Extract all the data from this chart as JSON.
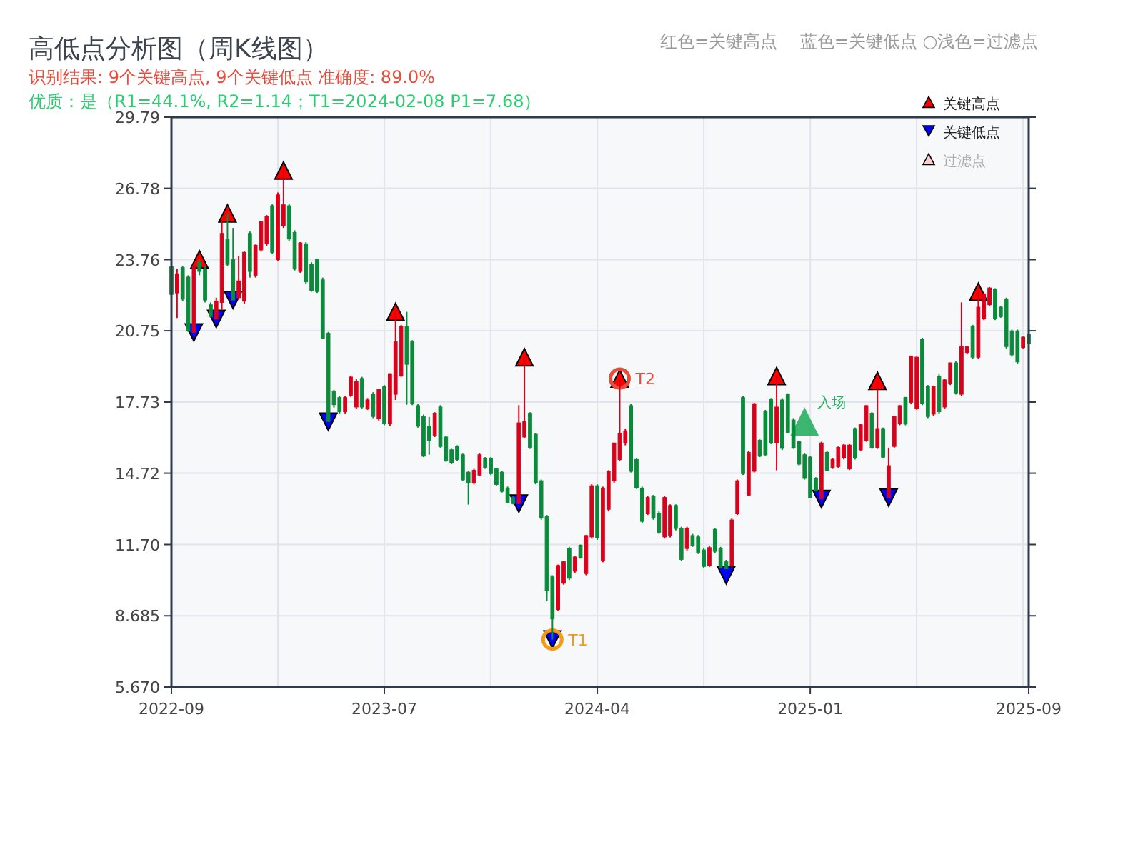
{
  "chart_data": {
    "type": "candlestick",
    "title": "高低点分析图（周K线图）",
    "subtitle": "识别结果: 9个关键高点, 9个关键低点  准确度: 89.0%",
    "annotations": [
      "红色=关键高点　 蓝色=关键低点  ○浅色=过滤点",
      "优质：是（R1=44.1%, R2=1.14；T1=2024-02-08 P1=7.68）"
    ],
    "categories": [
      "2022-09",
      null,
      null,
      null,
      null,
      null,
      null,
      null,
      null,
      null,
      null,
      null,
      null,
      null,
      null,
      null,
      null,
      null,
      null,
      null,
      null,
      null,
      null,
      null,
      null,
      null,
      null,
      null,
      null,
      null,
      null,
      null,
      null,
      null,
      null,
      null,
      null,
      null,
      "2023-07",
      null,
      null,
      null,
      null,
      null,
      null,
      null,
      null,
      null,
      null,
      null,
      null,
      null,
      null,
      null,
      null,
      null,
      null,
      null,
      null,
      null,
      null,
      null,
      null,
      null,
      null,
      null,
      null,
      null,
      null,
      null,
      null,
      null,
      null,
      null,
      null,
      null,
      "2024-04",
      null,
      null,
      null,
      null,
      null,
      null,
      null,
      null,
      null,
      null,
      null,
      null,
      null,
      null,
      null,
      null,
      null,
      null,
      null,
      null,
      null,
      null,
      null,
      null,
      null,
      null,
      null,
      null,
      null,
      null,
      null,
      null,
      null,
      null,
      null,
      null,
      null,
      "2025-01",
      null,
      null,
      null,
      null,
      null,
      null,
      null,
      null,
      null,
      null,
      null,
      null,
      null,
      null,
      null,
      null,
      null,
      null,
      null,
      null,
      null,
      null,
      null,
      null,
      null,
      null,
      null,
      null,
      null,
      null,
      null,
      null,
      null,
      null,
      null,
      null,
      null,
      null,
      "2025-09"
    ],
    "ohlc": [
      [
        23.46,
        23.5,
        22.2,
        22.29
      ],
      [
        22.35,
        23.36,
        21.29,
        23.16
      ],
      [
        23.42,
        23.5,
        22.0,
        22.09
      ],
      [
        23.02,
        23.1,
        20.7,
        20.74
      ],
      [
        20.68,
        23.6,
        20.68,
        23.5
      ],
      [
        23.66,
        23.77,
        23.1,
        23.26
      ],
      [
        23.36,
        23.5,
        21.95,
        22.05
      ],
      [
        21.85,
        21.95,
        21.3,
        21.35
      ],
      [
        21.25,
        22.15,
        21.25,
        22.0
      ],
      [
        21.95,
        25.44,
        21.65,
        24.87
      ],
      [
        24.63,
        25.72,
        23.5,
        23.56
      ],
      [
        23.76,
        25.1,
        22.05,
        22.05
      ],
      [
        22.15,
        23.93,
        22.1,
        22.86
      ],
      [
        22.0,
        24.1,
        21.9,
        24.07
      ],
      [
        24.87,
        24.95,
        23.0,
        23.26
      ],
      [
        23.1,
        24.4,
        23.0,
        24.37
      ],
      [
        24.17,
        25.4,
        24.1,
        25.38
      ],
      [
        24.43,
        25.65,
        24.35,
        25.58
      ],
      [
        26.04,
        26.1,
        24.0,
        24.07
      ],
      [
        23.76,
        26.6,
        23.7,
        26.5
      ],
      [
        25.18,
        27.53,
        25.1,
        26.08
      ],
      [
        26.04,
        26.1,
        24.55,
        24.63
      ],
      [
        24.91,
        25.0,
        23.3,
        23.36
      ],
      [
        23.26,
        24.5,
        23.2,
        24.47
      ],
      [
        24.43,
        24.5,
        22.75,
        22.82
      ],
      [
        23.56,
        23.65,
        22.4,
        22.45
      ],
      [
        23.76,
        23.8,
        22.35,
        22.41
      ],
      [
        22.9,
        23.0,
        20.4,
        20.44
      ],
      [
        20.64,
        20.7,
        16.9,
        16.91
      ],
      [
        18.18,
        18.25,
        17.5,
        17.62
      ],
      [
        17.92,
        18.0,
        17.25,
        17.32
      ],
      [
        17.32,
        18.0,
        17.25,
        17.92
      ],
      [
        18.02,
        18.85,
        17.95,
        18.79
      ],
      [
        17.52,
        18.7,
        17.45,
        18.59
      ],
      [
        18.73,
        18.8,
        17.45,
        17.52
      ],
      [
        17.46,
        17.9,
        17.4,
        17.82
      ],
      [
        18.06,
        18.15,
        17.05,
        17.12
      ],
      [
        17.02,
        18.3,
        16.95,
        18.26
      ],
      [
        18.38,
        18.45,
        16.75,
        16.81
      ],
      [
        16.81,
        18.95,
        16.7,
        18.93
      ],
      [
        18.06,
        21.55,
        17.82,
        20.28
      ],
      [
        18.83,
        21.0,
        18.8,
        20.94
      ],
      [
        20.94,
        21.55,
        17.62,
        19.33
      ],
      [
        20.28,
        20.35,
        17.6,
        17.66
      ],
      [
        17.58,
        17.65,
        16.65,
        16.71
      ],
      [
        17.12,
        17.2,
        15.4,
        15.44
      ],
      [
        16.71,
        17.1,
        15.5,
        16.11
      ],
      [
        16.31,
        17.3,
        16.25,
        17.26
      ],
      [
        17.52,
        17.6,
        15.8,
        15.85
      ],
      [
        16.25,
        16.3,
        15.2,
        15.24
      ],
      [
        15.71,
        15.75,
        15.1,
        15.16
      ],
      [
        15.85,
        15.9,
        15.25,
        15.3
      ],
      [
        15.5,
        15.55,
        14.4,
        14.44
      ],
      [
        14.76,
        14.8,
        13.39,
        14.3
      ],
      [
        14.3,
        14.9,
        14.25,
        14.84
      ],
      [
        14.64,
        15.55,
        14.6,
        15.5
      ],
      [
        15.36,
        15.4,
        14.9,
        14.96
      ],
      [
        15.36,
        15.4,
        14.65,
        14.7
      ],
      [
        14.9,
        14.95,
        14.2,
        14.24
      ],
      [
        14.76,
        14.8,
        13.9,
        13.95
      ],
      [
        14.09,
        14.15,
        13.45,
        13.49
      ],
      [
        13.69,
        13.75,
        13.4,
        13.43
      ],
      [
        13.43,
        17.6,
        13.43,
        16.85
      ],
      [
        16.25,
        19.63,
        16.2,
        16.91
      ],
      [
        17.26,
        17.3,
        15.75,
        15.81
      ],
      [
        16.37,
        16.4,
        14.25,
        14.3
      ],
      [
        14.4,
        14.45,
        12.75,
        12.82
      ],
      [
        12.88,
        12.95,
        9.3,
        9.76
      ],
      [
        10.33,
        10.4,
        7.68,
        8.55
      ],
      [
        8.95,
        10.85,
        8.9,
        10.81
      ],
      [
        10.06,
        11.0,
        10.0,
        10.97
      ],
      [
        11.53,
        11.6,
        10.2,
        10.27
      ],
      [
        10.57,
        11.2,
        10.5,
        11.17
      ],
      [
        11.67,
        11.7,
        11.1,
        11.13
      ],
      [
        10.47,
        12.1,
        10.4,
        12.08
      ],
      [
        12.02,
        14.25,
        11.95,
        14.19
      ],
      [
        14.19,
        14.25,
        11.9,
        11.98
      ],
      [
        11.01,
        14.15,
        10.95,
        14.09
      ],
      [
        13.19,
        14.85,
        13.1,
        14.8
      ],
      [
        14.4,
        16.0,
        14.3,
        16.0
      ],
      [
        15.3,
        18.73,
        15.25,
        16.41
      ],
      [
        16.0,
        16.6,
        15.9,
        16.51
      ],
      [
        17.58,
        17.65,
        14.75,
        14.8
      ],
      [
        15.3,
        15.35,
        14.05,
        14.09
      ],
      [
        14.09,
        14.15,
        12.6,
        12.68
      ],
      [
        13.0,
        13.75,
        12.95,
        13.69
      ],
      [
        13.75,
        13.8,
        12.75,
        12.82
      ],
      [
        13.02,
        13.1,
        12.15,
        12.22
      ],
      [
        12.02,
        13.75,
        11.95,
        13.69
      ],
      [
        12.08,
        13.4,
        12.0,
        13.35
      ],
      [
        13.35,
        13.4,
        12.3,
        12.38
      ],
      [
        12.38,
        12.45,
        11.0,
        11.07
      ],
      [
        11.53,
        12.45,
        11.45,
        12.38
      ],
      [
        12.08,
        12.15,
        11.6,
        11.67
      ],
      [
        12.02,
        12.1,
        11.3,
        11.37
      ],
      [
        11.47,
        11.55,
        10.7,
        10.77
      ],
      [
        10.81,
        11.65,
        10.75,
        11.57
      ],
      [
        12.34,
        12.4,
        11.35,
        11.41
      ],
      [
        11.53,
        11.6,
        10.7,
        10.73
      ],
      [
        10.97,
        11.05,
        10.67,
        10.67
      ],
      [
        10.81,
        12.8,
        10.75,
        12.74
      ],
      [
        13.0,
        14.45,
        12.95,
        14.4
      ],
      [
        17.92,
        18.0,
        14.65,
        14.7
      ],
      [
        13.79,
        15.65,
        13.75,
        15.6
      ],
      [
        14.8,
        17.7,
        14.75,
        17.66
      ],
      [
        16.11,
        16.15,
        15.4,
        15.44
      ],
      [
        17.32,
        17.4,
        15.45,
        15.5
      ],
      [
        17.86,
        17.9,
        15.95,
        16.0
      ],
      [
        16.0,
        18.83,
        14.84,
        17.52
      ],
      [
        17.82,
        17.9,
        15.7,
        15.77
      ],
      [
        18.06,
        18.1,
        16.4,
        16.45
      ],
      [
        16.97,
        17.05,
        15.75,
        15.81
      ],
      [
        16.05,
        16.1,
        15.05,
        15.1
      ],
      [
        15.5,
        15.55,
        14.45,
        14.5
      ],
      [
        15.4,
        15.45,
        13.65,
        13.69
      ],
      [
        14.5,
        14.55,
        13.95,
        14.0
      ],
      [
        13.63,
        16.05,
        13.63,
        16.0
      ],
      [
        15.6,
        15.65,
        14.8,
        14.84
      ],
      [
        14.96,
        15.35,
        14.9,
        15.3
      ],
      [
        15.0,
        15.85,
        14.95,
        15.81
      ],
      [
        15.36,
        15.95,
        15.3,
        15.91
      ],
      [
        14.9,
        15.95,
        14.85,
        15.91
      ],
      [
        16.61,
        16.65,
        15.3,
        15.36
      ],
      [
        15.71,
        16.8,
        15.65,
        16.77
      ],
      [
        16.11,
        17.6,
        16.05,
        17.58
      ],
      [
        17.26,
        17.3,
        15.75,
        15.81
      ],
      [
        15.81,
        18.63,
        15.75,
        16.61
      ],
      [
        16.61,
        16.65,
        15.35,
        15.4
      ],
      [
        13.69,
        15.8,
        13.69,
        15.04
      ],
      [
        15.85,
        17.15,
        15.8,
        17.12
      ],
      [
        16.81,
        17.6,
        16.75,
        17.58
      ],
      [
        17.92,
        17.95,
        16.75,
        16.81
      ],
      [
        17.72,
        19.7,
        17.65,
        19.67
      ],
      [
        17.46,
        19.65,
        17.4,
        19.63
      ],
      [
        20.4,
        20.45,
        17.6,
        17.66
      ],
      [
        18.38,
        18.45,
        17.05,
        17.12
      ],
      [
        17.22,
        18.4,
        17.15,
        18.38
      ],
      [
        18.83,
        18.9,
        17.25,
        17.32
      ],
      [
        17.52,
        18.7,
        17.45,
        18.67
      ],
      [
        18.53,
        19.4,
        18.45,
        19.39
      ],
      [
        19.39,
        19.45,
        18.05,
        18.12
      ],
      [
        18.06,
        21.95,
        18.0,
        20.08
      ],
      [
        19.83,
        20.1,
        19.75,
        20.08
      ],
      [
        20.94,
        21.0,
        19.55,
        19.63
      ],
      [
        19.63,
        22.4,
        19.55,
        21.75
      ],
      [
        21.25,
        22.35,
        21.2,
        22.3
      ],
      [
        21.85,
        22.6,
        21.8,
        22.56
      ],
      [
        22.5,
        22.55,
        21.2,
        21.25
      ],
      [
        21.75,
        21.8,
        21.3,
        21.35
      ],
      [
        22.09,
        22.15,
        20.0,
        20.08
      ],
      [
        20.74,
        20.8,
        19.65,
        19.73
      ],
      [
        20.74,
        20.8,
        19.35,
        19.43
      ],
      [
        20.04,
        20.5,
        20.0,
        20.48
      ],
      [
        20.6,
        20.65,
        20.15,
        20.2
      ]
    ],
    "ylim": [
      5.67,
      29.79
    ],
    "yticks": [
      {
        "value": 5.67,
        "label": "5.670"
      },
      8.685,
      {
        "value": 11.7,
        "label": "11.70"
      },
      14.72,
      17.73,
      20.75,
      23.76,
      26.78,
      29.79
    ],
    "grid": true,
    "legend": "top right",
    "series": [
      {
        "name": "关键高点",
        "type": "scatter",
        "marker": "triangle",
        "color": "#ff0000",
        "values": [
          null,
          null,
          null,
          null,
          null,
          23.77,
          null,
          null,
          null,
          null,
          25.72,
          null,
          null,
          null,
          null,
          null,
          null,
          null,
          null,
          null,
          27.53,
          null,
          null,
          null,
          null,
          null,
          null,
          null,
          null,
          null,
          null,
          null,
          null,
          null,
          null,
          null,
          null,
          null,
          null,
          null,
          21.55,
          null,
          null,
          null,
          null,
          null,
          null,
          null,
          null,
          null,
          null,
          null,
          null,
          null,
          null,
          null,
          null,
          null,
          null,
          null,
          null,
          null,
          null,
          19.63,
          null,
          null,
          null,
          null,
          null,
          null,
          null,
          null,
          null,
          null,
          null,
          null,
          null,
          null,
          null,
          null,
          18.73,
          null,
          null,
          null,
          null,
          null,
          null,
          null,
          null,
          null,
          null,
          null,
          null,
          null,
          null,
          null,
          null,
          null,
          null,
          null,
          null,
          null,
          null,
          null,
          null,
          null,
          null,
          null,
          18.83,
          null,
          null,
          null,
          null,
          null,
          null,
          null,
          null,
          null,
          null,
          null,
          null,
          null,
          null,
          null,
          null,
          null,
          18.63,
          null,
          null,
          null,
          null,
          null,
          null,
          null,
          null,
          null,
          null,
          null,
          null,
          null,
          null,
          null,
          null,
          null,
          22.4,
          null,
          null,
          null,
          null,
          null,
          null,
          null,
          null,
          null
        ]
      },
      {
        "name": "关键低点",
        "type": "scatter",
        "marker": "triangle",
        "color": "#0000ff",
        "values": [
          null,
          null,
          null,
          null,
          20.68,
          null,
          null,
          null,
          21.25,
          null,
          null,
          22.05,
          null,
          null,
          null,
          null,
          null,
          null,
          null,
          null,
          null,
          null,
          null,
          null,
          null,
          null,
          null,
          null,
          16.9,
          null,
          null,
          null,
          null,
          null,
          null,
          null,
          null,
          null,
          null,
          null,
          null,
          null,
          null,
          null,
          null,
          null,
          null,
          null,
          null,
          null,
          null,
          null,
          null,
          null,
          null,
          null,
          null,
          null,
          null,
          null,
          null,
          null,
          13.43,
          null,
          null,
          null,
          null,
          null,
          7.68,
          null,
          null,
          null,
          null,
          null,
          null,
          null,
          null,
          null,
          null,
          null,
          null,
          null,
          null,
          null,
          null,
          null,
          null,
          null,
          null,
          null,
          null,
          null,
          null,
          null,
          null,
          null,
          null,
          null,
          null,
          10.4,
          null,
          null,
          null,
          null,
          null,
          null,
          null,
          null,
          null,
          null,
          null,
          null,
          null,
          null,
          null,
          null,
          13.63,
          null,
          null,
          null,
          null,
          null,
          null,
          null,
          null,
          null,
          null,
          null,
          13.69,
          null,
          null,
          null,
          null,
          null,
          null,
          null,
          null,
          null,
          null,
          null,
          null,
          null,
          null,
          null,
          null,
          null,
          null,
          null,
          null,
          null,
          null,
          null,
          null,
          null
        ]
      },
      {
        "name": "过滤点",
        "type": "scatter",
        "marker": "triangle",
        "color": "#ffcccc",
        "values": [
          null,
          null,
          null,
          null,
          null,
          null,
          null,
          null,
          null,
          null,
          null,
          null,
          null,
          null,
          null,
          null,
          null,
          null,
          null,
          null,
          null,
          null,
          null,
          null,
          null,
          null,
          null,
          null,
          null,
          null,
          null,
          null,
          null,
          null,
          null,
          null,
          null,
          null,
          null,
          null,
          null,
          null,
          null,
          null,
          null,
          null,
          null,
          null,
          null,
          null,
          null,
          null,
          null,
          null,
          null,
          null,
          null,
          null,
          null,
          null,
          null,
          null,
          null,
          null,
          null,
          null,
          null,
          null,
          null,
          null,
          null,
          null,
          null,
          null,
          null,
          null,
          null,
          null,
          null,
          null,
          null,
          null,
          null,
          null,
          null,
          null,
          null,
          null,
          null,
          null,
          null,
          null,
          null,
          null,
          null,
          null,
          null,
          null,
          null,
          null,
          null,
          null,
          null,
          null,
          null,
          null,
          null,
          null,
          null,
          null,
          null,
          null,
          null,
          null,
          null,
          null,
          null,
          null,
          null,
          null,
          null,
          null,
          null,
          null,
          null,
          null,
          null,
          null,
          null,
          null,
          null,
          null,
          null,
          null,
          null,
          null,
          null,
          null,
          null,
          null,
          null,
          null,
          null,
          null,
          null,
          null,
          null,
          null,
          null,
          null,
          null,
          null,
          null,
          null
        ]
      },
      {
        "name": "T1",
        "type": "scatter",
        "marker": "circle",
        "color": "#f39c12",
        "values": [
          null,
          null,
          null,
          null,
          null,
          null,
          null,
          null,
          null,
          null,
          null,
          null,
          null,
          null,
          null,
          null,
          null,
          null,
          null,
          null,
          null,
          null,
          null,
          null,
          null,
          null,
          null,
          null,
          null,
          null,
          null,
          null,
          null,
          null,
          null,
          null,
          null,
          null,
          null,
          null,
          null,
          null,
          null,
          null,
          null,
          null,
          null,
          null,
          null,
          null,
          null,
          null,
          null,
          null,
          null,
          null,
          null,
          null,
          null,
          null,
          null,
          null,
          null,
          null,
          null,
          null,
          null,
          null,
          7.68,
          null,
          null,
          null,
          null,
          null,
          null,
          null,
          null,
          null,
          null,
          null,
          null,
          null,
          null,
          null,
          null,
          null,
          null,
          null,
          null,
          null,
          null,
          null,
          null,
          null,
          null,
          null,
          null,
          null,
          null,
          null,
          null,
          null,
          null,
          null,
          null,
          null,
          null,
          null,
          null,
          null,
          null,
          null,
          null,
          null,
          null,
          null,
          null,
          null,
          null,
          null,
          null,
          null,
          null,
          null,
          null,
          null,
          null,
          null,
          null,
          null,
          null,
          null,
          null,
          null,
          null,
          null,
          null,
          null,
          null,
          null,
          null,
          null,
          null,
          null,
          null,
          null,
          null,
          null,
          null,
          null,
          null,
          null,
          null,
          null
        ]
      },
      {
        "name": "T2",
        "type": "scatter",
        "marker": "circle",
        "color": "#e74c3c",
        "values": [
          null,
          null,
          null,
          null,
          null,
          null,
          null,
          null,
          null,
          null,
          null,
          null,
          null,
          null,
          null,
          null,
          null,
          null,
          null,
          null,
          null,
          null,
          null,
          null,
          null,
          null,
          null,
          null,
          null,
          null,
          null,
          null,
          null,
          null,
          null,
          null,
          null,
          null,
          null,
          null,
          null,
          null,
          null,
          null,
          null,
          null,
          null,
          null,
          null,
          null,
          null,
          null,
          null,
          null,
          null,
          null,
          null,
          null,
          null,
          null,
          null,
          null,
          null,
          null,
          null,
          null,
          null,
          null,
          null,
          null,
          null,
          null,
          null,
          null,
          null,
          null,
          null,
          null,
          null,
          null,
          18.73,
          null,
          null,
          null,
          null,
          null,
          null,
          null,
          null,
          null,
          null,
          null,
          null,
          null,
          null,
          null,
          null,
          null,
          null,
          null,
          null,
          null,
          null,
          null,
          null,
          null,
          null,
          null,
          null,
          null,
          null,
          null,
          null,
          null,
          null,
          null,
          null,
          null,
          null,
          null,
          null,
          null,
          null,
          null,
          null,
          null,
          null,
          null,
          null,
          null,
          null,
          null,
          null,
          null,
          null,
          null,
          null,
          null,
          null,
          null,
          null,
          null,
          null,
          null,
          null,
          null,
          null,
          null,
          null,
          null,
          null,
          null,
          null,
          null
        ]
      },
      {
        "name": "入场",
        "type": "scatter",
        "marker": "triangle",
        "color": "#27ae60",
        "values": [
          null,
          null,
          null,
          null,
          null,
          null,
          null,
          null,
          null,
          null,
          null,
          null,
          null,
          null,
          null,
          null,
          null,
          null,
          null,
          null,
          null,
          null,
          null,
          null,
          null,
          null,
          null,
          null,
          null,
          null,
          null,
          null,
          null,
          null,
          null,
          null,
          null,
          null,
          null,
          null,
          null,
          null,
          null,
          null,
          null,
          null,
          null,
          null,
          null,
          null,
          null,
          null,
          null,
          null,
          null,
          null,
          null,
          null,
          null,
          null,
          null,
          null,
          null,
          null,
          null,
          null,
          null,
          null,
          null,
          null,
          null,
          null,
          null,
          null,
          null,
          null,
          null,
          null,
          null,
          null,
          null,
          null,
          null,
          null,
          null,
          null,
          null,
          null,
          null,
          null,
          null,
          null,
          null,
          null,
          null,
          null,
          null,
          null,
          null,
          null,
          null,
          null,
          null,
          null,
          null,
          null,
          null,
          null,
          null,
          null,
          null,
          null,
          null,
          16.91,
          null,
          null,
          null,
          null,
          null,
          null,
          null,
          null,
          null,
          null,
          null,
          null,
          null,
          null,
          null,
          null,
          null,
          null,
          null,
          null,
          null,
          null,
          null,
          null,
          null,
          null,
          null,
          null,
          null,
          null,
          null,
          null,
          null,
          null,
          null,
          null,
          null,
          null,
          null,
          null
        ]
      }
    ]
  }
}
